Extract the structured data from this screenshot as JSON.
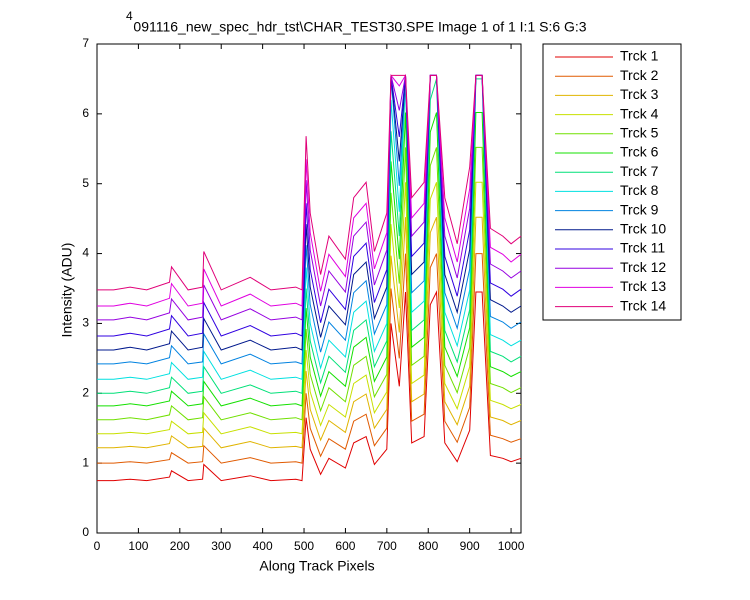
{
  "chart_data": {
    "type": "line",
    "title": "091116_new_spec_hdr_tst\\CHAR_TEST30.SPE  Image 1 of 1  I:1  S:6  G:3",
    "y_exponent": "4",
    "xlabel": "Along Track Pixels",
    "ylabel": "Intensity (ADU)",
    "xlim": [
      0,
      1024
    ],
    "xticks": [
      0,
      100,
      200,
      300,
      400,
      500,
      600,
      700,
      800,
      900,
      1000
    ],
    "ylim": [
      0,
      7
    ],
    "yticks": [
      0,
      1,
      2,
      3,
      4,
      5,
      6,
      7
    ],
    "legend": "outside-right",
    "x": [
      0,
      40,
      80,
      120,
      175,
      180,
      220,
      255,
      258,
      300,
      370,
      420,
      480,
      495,
      505,
      515,
      540,
      560,
      600,
      620,
      650,
      670,
      700,
      710,
      730,
      745,
      760,
      790,
      805,
      820,
      840,
      870,
      900,
      915,
      930,
      950,
      980,
      1000,
      1024
    ],
    "series": [
      {
        "name": "Trck 1",
        "color": "#e00000",
        "values": [
          0.75,
          0.75,
          0.77,
          0.75,
          0.8,
          0.89,
          0.75,
          0.77,
          0.98,
          0.75,
          0.82,
          0.75,
          0.77,
          0.75,
          1.65,
          1.2,
          0.84,
          1.07,
          0.93,
          1.29,
          1.38,
          0.98,
          1.2,
          3.0,
          2.1,
          3.45,
          1.29,
          1.38,
          3.27,
          3.45,
          1.29,
          1.02,
          1.47,
          3.45,
          3.45,
          1.11,
          1.07,
          1.02,
          1.07
        ]
      },
      {
        "name": "Trck 2",
        "color": "#e05a00",
        "values": [
          1.0,
          1.0,
          1.02,
          1.0,
          1.05,
          1.15,
          1.0,
          1.02,
          1.25,
          1.0,
          1.08,
          1.0,
          1.02,
          1.0,
          2.0,
          1.5,
          1.1,
          1.35,
          1.2,
          1.6,
          1.7,
          1.25,
          1.5,
          3.5,
          2.5,
          4.0,
          1.6,
          1.7,
          3.8,
          4.0,
          1.6,
          1.3,
          1.8,
          4.0,
          4.0,
          1.4,
          1.35,
          1.3,
          1.35
        ]
      },
      {
        "name": "Trck 3",
        "color": "#e0b400",
        "values": [
          1.22,
          1.22,
          1.24,
          1.22,
          1.28,
          1.39,
          1.22,
          1.24,
          1.5,
          1.22,
          1.31,
          1.22,
          1.24,
          1.22,
          2.32,
          1.77,
          1.33,
          1.61,
          1.44,
          1.88,
          1.99,
          1.5,
          1.77,
          3.97,
          2.87,
          4.52,
          1.88,
          1.99,
          4.3,
          4.52,
          1.88,
          1.55,
          2.1,
          4.52,
          4.52,
          1.66,
          1.61,
          1.55,
          1.61
        ]
      },
      {
        "name": "Trck 4",
        "color": "#c8e000",
        "values": [
          1.42,
          1.42,
          1.44,
          1.42,
          1.48,
          1.6,
          1.42,
          1.44,
          1.72,
          1.42,
          1.52,
          1.42,
          1.44,
          1.42,
          2.62,
          2.02,
          1.54,
          1.84,
          1.66,
          2.14,
          2.26,
          1.72,
          2.02,
          4.42,
          3.22,
          5.02,
          2.14,
          2.26,
          4.78,
          5.02,
          2.14,
          1.78,
          2.38,
          5.02,
          5.02,
          1.9,
          1.84,
          1.78,
          1.84
        ]
      },
      {
        "name": "Trck 5",
        "color": "#70e000",
        "values": [
          1.62,
          1.62,
          1.65,
          1.62,
          1.69,
          1.82,
          1.62,
          1.65,
          1.95,
          1.62,
          1.72,
          1.62,
          1.65,
          1.62,
          2.92,
          2.27,
          1.75,
          2.08,
          1.88,
          2.4,
          2.53,
          1.95,
          2.27,
          4.87,
          3.57,
          5.52,
          2.4,
          2.53,
          5.26,
          5.52,
          2.4,
          2.01,
          2.66,
          5.52,
          5.52,
          2.14,
          2.08,
          2.01,
          2.08
        ]
      },
      {
        "name": "Trck 6",
        "color": "#14e000",
        "values": [
          1.82,
          1.82,
          1.85,
          1.82,
          1.89,
          2.03,
          1.82,
          1.85,
          2.17,
          1.82,
          1.93,
          1.82,
          1.85,
          1.82,
          3.22,
          2.52,
          1.96,
          2.31,
          2.1,
          2.66,
          2.8,
          2.17,
          2.52,
          5.32,
          3.92,
          6.02,
          2.66,
          2.8,
          5.74,
          6.02,
          2.66,
          2.24,
          2.94,
          6.02,
          6.02,
          2.38,
          2.31,
          2.24,
          2.31
        ]
      },
      {
        "name": "Trck 7",
        "color": "#00e078",
        "values": [
          2.0,
          2.0,
          2.03,
          2.0,
          2.08,
          2.23,
          2.0,
          2.03,
          2.38,
          2.0,
          2.12,
          2.0,
          2.03,
          2.0,
          3.5,
          2.75,
          2.15,
          2.53,
          2.3,
          2.9,
          3.05,
          2.38,
          2.75,
          5.75,
          4.25,
          6.5,
          2.9,
          3.05,
          6.2,
          6.5,
          2.9,
          2.45,
          3.2,
          6.5,
          6.5,
          2.6,
          2.53,
          2.45,
          2.53
        ]
      },
      {
        "name": "Trck 8",
        "color": "#00e0e0",
        "values": [
          2.2,
          2.2,
          2.23,
          2.2,
          2.28,
          2.44,
          2.2,
          2.23,
          2.6,
          2.2,
          2.33,
          2.2,
          2.23,
          2.2,
          3.8,
          3.0,
          2.36,
          2.76,
          2.52,
          3.16,
          3.32,
          2.6,
          3.0,
          6.2,
          4.6,
          6.55,
          3.16,
          3.32,
          6.55,
          6.55,
          3.16,
          2.68,
          3.48,
          6.55,
          6.55,
          2.84,
          2.76,
          2.68,
          2.76
        ]
      },
      {
        "name": "Trck 9",
        "color": "#0082e0",
        "values": [
          2.42,
          2.42,
          2.45,
          2.42,
          2.51,
          2.68,
          2.42,
          2.45,
          2.85,
          2.42,
          2.56,
          2.42,
          2.45,
          2.42,
          4.12,
          3.27,
          2.59,
          3.02,
          2.76,
          3.44,
          3.61,
          2.85,
          3.27,
          6.55,
          4.97,
          6.55,
          3.44,
          3.61,
          6.55,
          6.55,
          3.44,
          2.93,
          3.78,
          6.55,
          6.55,
          3.1,
          3.02,
          2.93,
          3.02
        ]
      },
      {
        "name": "Trck 10",
        "color": "#00188c",
        "values": [
          2.62,
          2.62,
          2.66,
          2.62,
          2.71,
          2.89,
          2.62,
          2.66,
          3.07,
          2.62,
          2.76,
          2.62,
          2.66,
          2.62,
          4.42,
          3.52,
          2.8,
          3.25,
          2.98,
          3.7,
          3.88,
          3.07,
          3.52,
          6.55,
          5.32,
          6.55,
          3.7,
          3.88,
          6.55,
          6.55,
          3.7,
          3.16,
          4.06,
          6.55,
          6.55,
          3.34,
          3.25,
          3.16,
          3.25
        ]
      },
      {
        "name": "Trck 11",
        "color": "#3000e0",
        "values": [
          2.82,
          2.82,
          2.86,
          2.82,
          2.92,
          3.11,
          2.82,
          2.86,
          3.3,
          2.82,
          2.97,
          2.82,
          2.86,
          2.82,
          4.72,
          3.77,
          3.01,
          3.49,
          3.2,
          3.96,
          4.15,
          3.3,
          3.77,
          6.55,
          5.67,
          6.55,
          3.96,
          4.15,
          6.55,
          6.55,
          3.96,
          3.39,
          4.34,
          6.55,
          6.55,
          3.58,
          3.49,
          3.39,
          3.49
        ]
      },
      {
        "name": "Trck 12",
        "color": "#9600e0",
        "values": [
          3.05,
          3.05,
          3.09,
          3.05,
          3.15,
          3.35,
          3.05,
          3.09,
          3.55,
          3.05,
          3.21,
          3.05,
          3.09,
          3.05,
          5.05,
          4.05,
          3.25,
          3.75,
          3.45,
          4.25,
          4.45,
          3.55,
          4.05,
          6.55,
          6.05,
          6.55,
          4.25,
          4.45,
          6.55,
          6.55,
          4.25,
          3.65,
          4.65,
          6.55,
          6.55,
          3.85,
          3.75,
          3.65,
          3.75
        ]
      },
      {
        "name": "Trck 13",
        "color": "#e000e0",
        "values": [
          3.25,
          3.25,
          3.29,
          3.25,
          3.36,
          3.57,
          3.25,
          3.29,
          3.78,
          3.25,
          3.42,
          3.25,
          3.29,
          3.25,
          5.35,
          4.3,
          3.46,
          3.99,
          3.67,
          4.51,
          4.72,
          3.78,
          4.3,
          6.55,
          6.4,
          6.55,
          4.51,
          4.72,
          6.55,
          6.55,
          4.51,
          3.88,
          4.93,
          6.55,
          6.55,
          4.09,
          3.99,
          3.88,
          3.99
        ]
      },
      {
        "name": "Trck 14",
        "color": "#e00078",
        "values": [
          3.48,
          3.48,
          3.52,
          3.48,
          3.59,
          3.81,
          3.48,
          3.52,
          4.03,
          3.48,
          3.66,
          3.48,
          3.52,
          3.48,
          5.68,
          4.58,
          3.7,
          4.25,
          3.92,
          4.8,
          5.02,
          4.03,
          4.58,
          6.55,
          6.55,
          6.55,
          4.8,
          5.02,
          6.55,
          6.55,
          4.8,
          4.14,
          5.24,
          6.55,
          6.55,
          4.36,
          4.25,
          4.14,
          4.25
        ]
      }
    ]
  }
}
